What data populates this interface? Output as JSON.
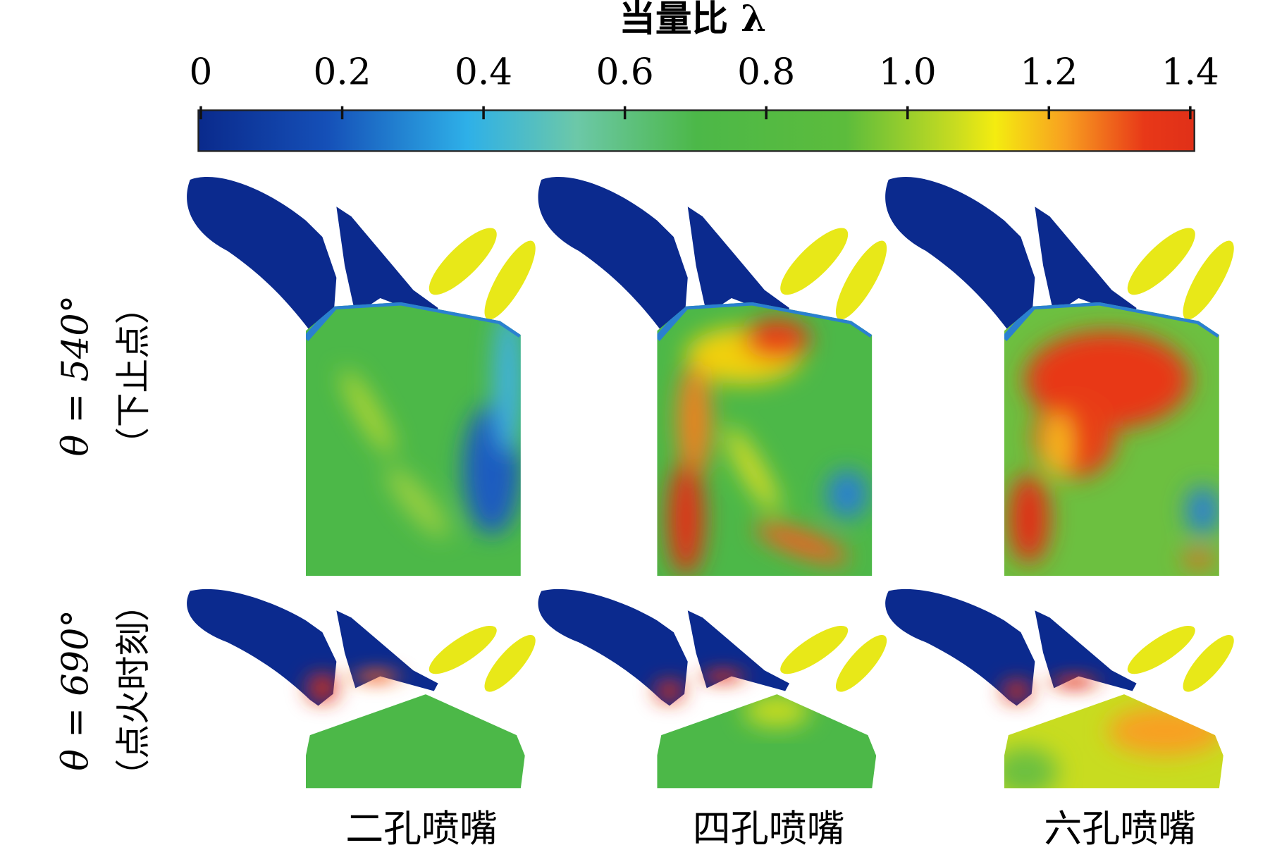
{
  "colorbar": {
    "title": "当量比 λ",
    "clim": [
      0,
      1.4
    ],
    "ticks": [
      0,
      0.2,
      0.4,
      0.6,
      0.8,
      {
        "value": 1.0,
        "label": "1.0"
      },
      1.2,
      1.4
    ]
  },
  "rows": [
    {
      "angle": "θ = 540°",
      "note": "（下止点）"
    },
    {
      "angle": "θ = 690°",
      "note": "（点火时刻）"
    }
  ],
  "columns": [
    "二孔喷嘴",
    "四孔喷嘴",
    "六孔喷嘴"
  ]
}
